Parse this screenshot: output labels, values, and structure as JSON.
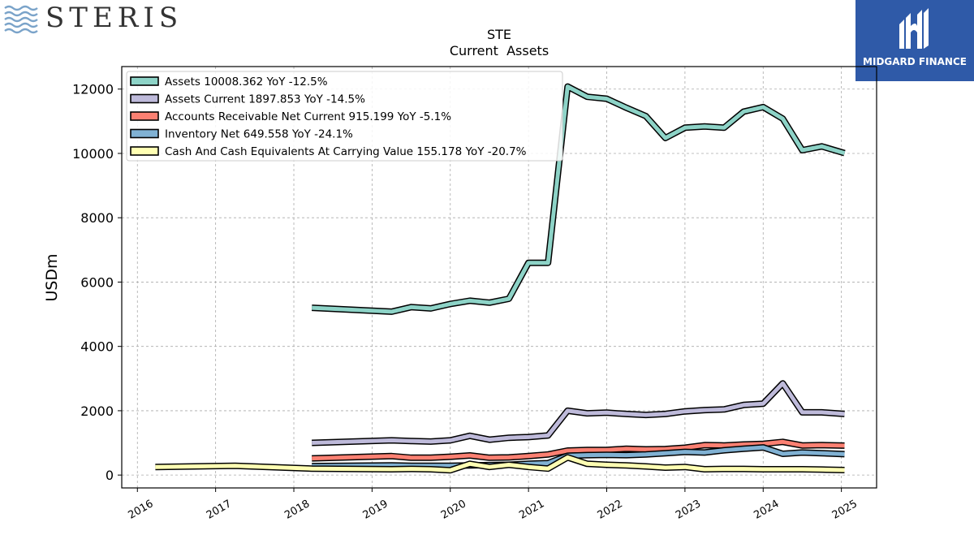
{
  "brand": {
    "left_logo_text": "STERIS",
    "right_logo_text": "MIDGARD FINANCE",
    "right_logo_bg": "#2f5aa8"
  },
  "chart_data": {
    "type": "line",
    "title": "STE",
    "subtitle": "Current  Assets",
    "ylabel": "USDm",
    "xlabel": "",
    "xlim": [
      2015.8,
      2025.45
    ],
    "ylim": [
      -400,
      12700
    ],
    "x_ticks": [
      2016,
      2017,
      2018,
      2019,
      2020,
      2021,
      2022,
      2023,
      2024,
      2025
    ],
    "x_tick_labels": [
      "2016",
      "2017",
      "2018",
      "2019",
      "2020",
      "2021",
      "2022",
      "2023",
      "2024",
      "2025"
    ],
    "y_ticks": [
      0,
      2000,
      4000,
      6000,
      8000,
      10000,
      12000
    ],
    "y_tick_labels": [
      "0",
      "2000",
      "4000",
      "6000",
      "8000",
      "10000",
      "12000"
    ],
    "grid": true,
    "legend_position": "top-left",
    "series": [
      {
        "name": "Assets",
        "legend": "Assets  10008.362 YoY -12.5%",
        "color": "#8dd3c7",
        "x": [
          2018.23,
          2019.25,
          2019.5,
          2019.75,
          2020.0,
          2020.25,
          2020.5,
          2020.75,
          2021.0,
          2021.25,
          2021.5,
          2021.75,
          2022.0,
          2022.25,
          2022.5,
          2022.75,
          2023.0,
          2023.25,
          2023.5,
          2023.75,
          2024.0,
          2024.25,
          2024.5,
          2024.75,
          2025.04
        ],
        "y": [
          5200,
          5080,
          5220,
          5180,
          5320,
          5420,
          5360,
          5480,
          6600,
          6600,
          12080,
          11760,
          11700,
          11420,
          11160,
          10480,
          10800,
          10840,
          10800,
          11300,
          11440,
          11080,
          10100,
          10220,
          10010
        ]
      },
      {
        "name": "Assets Current",
        "legend": "Assets Current  1897.853 YoY -14.5%",
        "color": "#bebada",
        "x": [
          2018.23,
          2019.25,
          2019.5,
          2019.75,
          2020.0,
          2020.25,
          2020.5,
          2020.75,
          2021.0,
          2021.25,
          2021.5,
          2021.75,
          2022.0,
          2022.25,
          2022.5,
          2022.75,
          2023.0,
          2023.25,
          2023.5,
          2023.75,
          2024.0,
          2024.25,
          2024.5,
          2024.75,
          2025.04
        ],
        "y": [
          1000,
          1080,
          1060,
          1040,
          1080,
          1220,
          1100,
          1160,
          1180,
          1230,
          2000,
          1920,
          1940,
          1900,
          1870,
          1900,
          1980,
          2020,
          2040,
          2180,
          2220,
          2850,
          1950,
          1950,
          1900
        ]
      },
      {
        "name": "Accounts Receivable Net Current",
        "legend": "Accounts Receivable Net Current  915.199 YoY -5.1%",
        "color": "#fb8072",
        "x": [
          2018.23,
          2019.25,
          2019.5,
          2019.75,
          2020.0,
          2020.25,
          2020.5,
          2020.75,
          2021.0,
          2021.25,
          2021.5,
          2021.75,
          2022.0,
          2022.25,
          2022.5,
          2022.75,
          2023.0,
          2023.25,
          2023.5,
          2023.75,
          2024.0,
          2024.25,
          2024.5,
          2024.75,
          2025.04
        ],
        "y": [
          520,
          590,
          540,
          540,
          570,
          610,
          540,
          550,
          590,
          640,
          760,
          780,
          780,
          820,
          800,
          810,
          850,
          930,
          920,
          950,
          970,
          1030,
          920,
          930,
          915
        ]
      },
      {
        "name": "Inventory Net",
        "legend": "Inventory Net  649.558 YoY -24.1%",
        "color": "#80b1d3",
        "x": [
          2018.23,
          2019.25,
          2019.5,
          2019.75,
          2020.0,
          2020.25,
          2020.5,
          2020.75,
          2021.0,
          2021.25,
          2021.5,
          2021.75,
          2022.0,
          2022.25,
          2022.5,
          2022.75,
          2023.0,
          2023.25,
          2023.5,
          2023.75,
          2024.0,
          2024.25,
          2024.5,
          2024.75,
          2025.04
        ],
        "y": [
          280,
          300,
          290,
          290,
          290,
          300,
          310,
          320,
          350,
          370,
          600,
          620,
          630,
          620,
          640,
          680,
          720,
          700,
          770,
          820,
          860,
          660,
          700,
          680,
          650
        ]
      },
      {
        "name": "Cash And Cash Equivalents At Carrying Value",
        "legend": "Cash And Cash Equivalents At Carrying Value  155.178 YoY -20.7%",
        "color": "#ffffb3",
        "x": [
          2016.23,
          2017.25,
          2018.23,
          2019.25,
          2019.5,
          2019.75,
          2020.0,
          2020.25,
          2020.5,
          2020.75,
          2021.0,
          2021.25,
          2021.5,
          2021.75,
          2022.0,
          2022.25,
          2022.5,
          2022.75,
          2023.0,
          2023.25,
          2023.5,
          2023.75,
          2024.0,
          2024.25,
          2024.5,
          2024.75,
          2025.04
        ],
        "y": [
          250,
          290,
          200,
          180,
          190,
          180,
          150,
          350,
          250,
          320,
          250,
          200,
          550,
          350,
          320,
          300,
          270,
          230,
          250,
          180,
          190,
          190,
          180,
          180,
          180,
          170,
          155
        ]
      }
    ]
  }
}
